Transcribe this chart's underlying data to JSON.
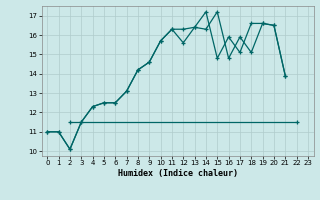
{
  "xlabel": "Humidex (Indice chaleur)",
  "xlim": [
    -0.5,
    23.5
  ],
  "ylim": [
    9.75,
    17.5
  ],
  "xticks": [
    0,
    1,
    2,
    3,
    4,
    5,
    6,
    7,
    8,
    9,
    10,
    11,
    12,
    13,
    14,
    15,
    16,
    17,
    18,
    19,
    20,
    21,
    22,
    23
  ],
  "yticks": [
    10,
    11,
    12,
    13,
    14,
    15,
    16,
    17
  ],
  "bg_color": "#cce8e8",
  "grid_color": "#b0cccc",
  "line_color": "#006666",
  "s1x": [
    0,
    1,
    2,
    3,
    4,
    5,
    6,
    7,
    8,
    9,
    10,
    11,
    12,
    13,
    14,
    15,
    16,
    17,
    18,
    19,
    20,
    21
  ],
  "s1y": [
    11.0,
    11.0,
    10.1,
    11.5,
    12.3,
    12.5,
    12.5,
    13.1,
    14.2,
    14.6,
    15.7,
    16.3,
    15.6,
    16.4,
    17.2,
    14.8,
    15.9,
    15.1,
    16.6,
    16.6,
    16.5,
    13.9
  ],
  "s2x": [
    0,
    1,
    2,
    3,
    4,
    5,
    6,
    7,
    8,
    9,
    10,
    11,
    12,
    13,
    14,
    15,
    16,
    17,
    18,
    19,
    20,
    21
  ],
  "s2y": [
    11.0,
    11.0,
    10.1,
    11.5,
    12.3,
    12.5,
    12.5,
    13.1,
    14.2,
    14.6,
    15.7,
    16.3,
    16.3,
    16.4,
    16.3,
    17.2,
    14.8,
    15.9,
    15.1,
    16.6,
    16.5,
    13.9
  ],
  "s3x": [
    2,
    22
  ],
  "s3y": [
    11.5,
    11.5
  ]
}
